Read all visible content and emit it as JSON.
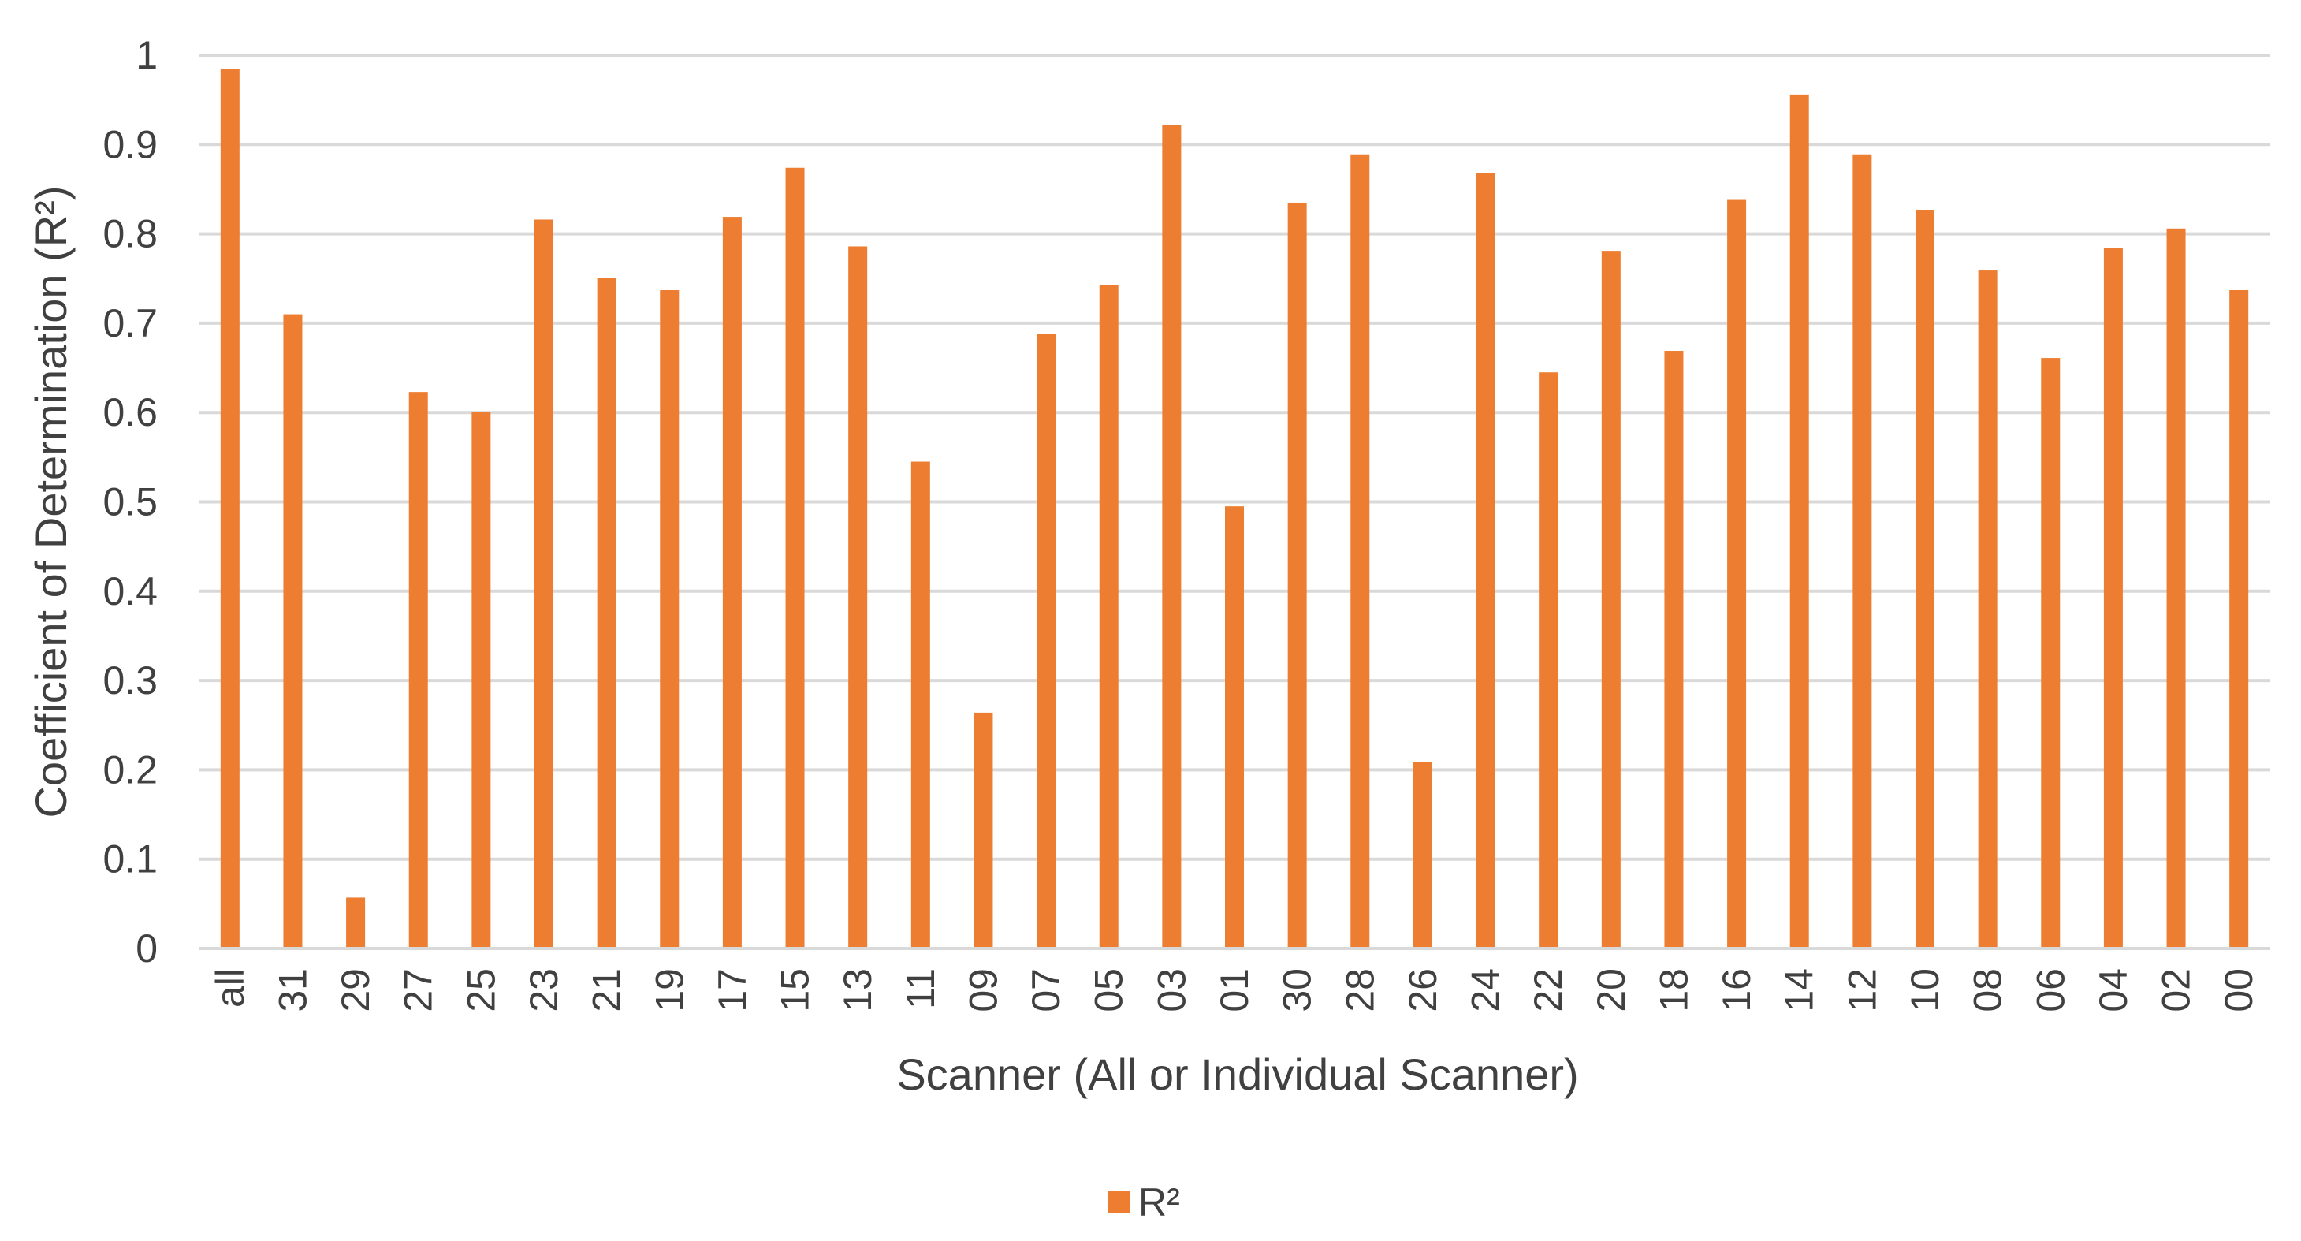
{
  "chart_data": {
    "type": "bar",
    "xlabel": "Scanner (All or Individual Scanner)",
    "ylabel": "Coefficient of Determination (R²)",
    "ylim": [
      0,
      1
    ],
    "yticks": [
      "0",
      "0.1",
      "0.2",
      "0.3",
      "0.4",
      "0.5",
      "0.6",
      "0.7",
      "0.8",
      "0.9",
      "1"
    ],
    "grid": true,
    "legend_position": "bottom-center",
    "categories": [
      "all",
      "31",
      "29",
      "27",
      "25",
      "23",
      "21",
      "19",
      "17",
      "15",
      "13",
      "11",
      "09",
      "07",
      "05",
      "03",
      "01",
      "30",
      "28",
      "26",
      "24",
      "22",
      "20",
      "18",
      "16",
      "14",
      "12",
      "10",
      "08",
      "06",
      "04",
      "02",
      "00"
    ],
    "series": [
      {
        "name": "R²",
        "color": "#ED7D31",
        "values": [
          0.985,
          0.71,
          0.057,
          0.623,
          0.601,
          0.816,
          0.751,
          0.737,
          0.819,
          0.874,
          0.786,
          0.545,
          0.264,
          0.688,
          0.743,
          0.922,
          0.495,
          0.835,
          0.889,
          0.209,
          0.868,
          0.645,
          0.781,
          0.669,
          0.838,
          0.956,
          0.889,
          0.827,
          0.759,
          0.661,
          0.784,
          0.806,
          0.737
        ]
      }
    ]
  }
}
